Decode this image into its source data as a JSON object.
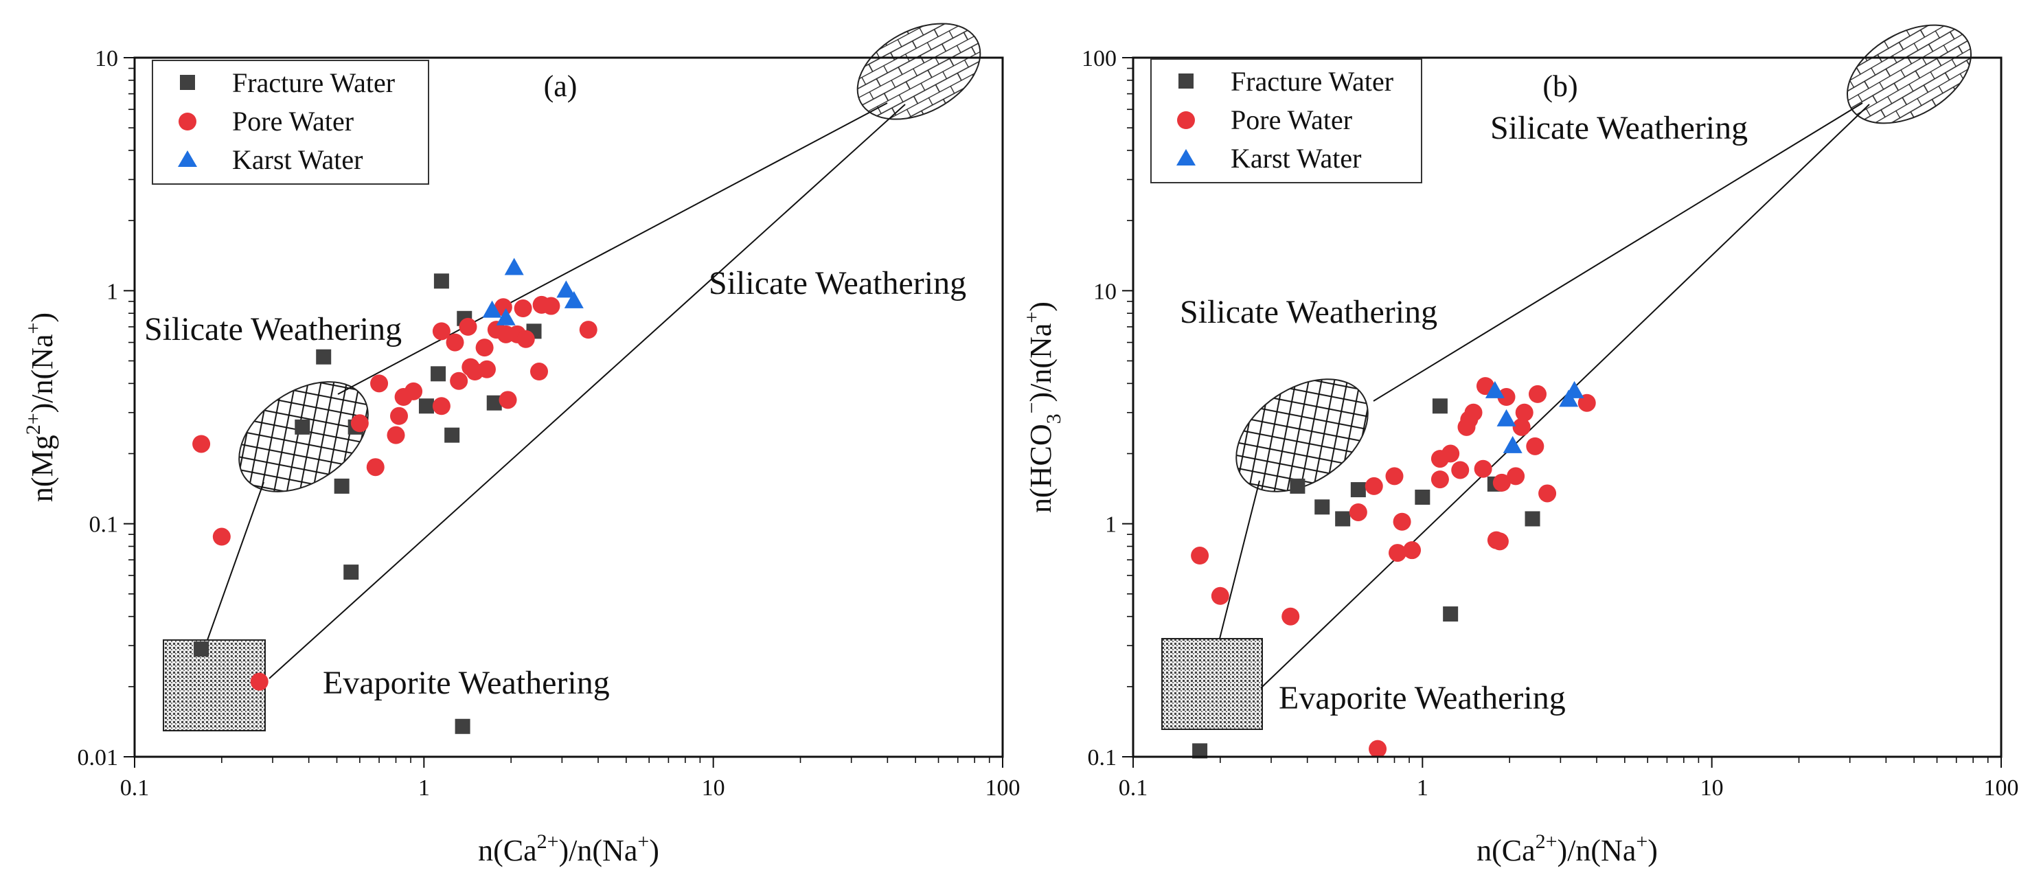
{
  "colors": {
    "fracture": "#404040",
    "pore": "#e8343a",
    "karst": "#1e6fe0"
  },
  "chart_data": [
    {
      "type": "scatter",
      "panel": "(a)",
      "x_scale": "log",
      "y_scale": "log",
      "xlim": [
        0.1,
        100
      ],
      "ylim": [
        0.01,
        10
      ],
      "x_ticks": [
        "0.1",
        "1",
        "10",
        "100"
      ],
      "y_ticks": [
        "0.01",
        "0.1",
        "1",
        "10"
      ],
      "xlabel": {
        "base": "n(Ca",
        "sup": "2+",
        "mid": ")/n(Na",
        "sup2": "+",
        "end": ")"
      },
      "ylabel": {
        "base": "n(Mg",
        "sup": "2+",
        "mid": ")/n(Na",
        "sup2": "+",
        "end": ")"
      },
      "legend": [
        "Fracture Water",
        "Pore Water",
        "Karst Water"
      ],
      "annotations": {
        "silicate_left": "Silicate Weathering",
        "silicate_right": "Silicate Weathering",
        "evaporite": "Evaporite Weathering"
      },
      "series": [
        {
          "name": "Fracture Water",
          "marker": "square",
          "points": [
            [
              0.17,
              0.029
            ],
            [
              0.38,
              0.26
            ],
            [
              0.45,
              0.52
            ],
            [
              0.52,
              0.145
            ],
            [
              0.56,
              0.062
            ],
            [
              0.58,
              0.26
            ],
            [
              1.02,
              0.32
            ],
            [
              1.12,
              0.44
            ],
            [
              1.15,
              1.1
            ],
            [
              1.25,
              0.24
            ],
            [
              1.38,
              0.76
            ],
            [
              1.36,
              0.0135
            ],
            [
              1.75,
              0.33
            ],
            [
              2.4,
              0.67
            ]
          ]
        },
        {
          "name": "Pore Water",
          "marker": "circle",
          "points": [
            [
              0.17,
              0.22
            ],
            [
              0.2,
              0.088
            ],
            [
              0.27,
              0.021
            ],
            [
              0.6,
              0.27
            ],
            [
              0.68,
              0.175
            ],
            [
              0.7,
              0.4
            ],
            [
              0.8,
              0.24
            ],
            [
              0.82,
              0.29
            ],
            [
              0.85,
              0.35
            ],
            [
              0.92,
              0.37
            ],
            [
              1.15,
              0.32
            ],
            [
              1.15,
              0.67
            ],
            [
              1.28,
              0.6
            ],
            [
              1.32,
              0.41
            ],
            [
              1.42,
              0.7
            ],
            [
              1.45,
              0.47
            ],
            [
              1.5,
              0.45
            ],
            [
              1.62,
              0.57
            ],
            [
              1.65,
              0.46
            ],
            [
              1.78,
              0.68
            ],
            [
              1.88,
              0.85
            ],
            [
              1.92,
              0.65
            ],
            [
              1.95,
              0.34
            ],
            [
              2.1,
              0.65
            ],
            [
              2.2,
              0.84
            ],
            [
              2.25,
              0.62
            ],
            [
              2.5,
              0.45
            ],
            [
              2.55,
              0.87
            ],
            [
              2.75,
              0.86
            ],
            [
              3.7,
              0.68
            ]
          ]
        },
        {
          "name": "Karst Water",
          "marker": "triangle",
          "points": [
            [
              1.72,
              0.82
            ],
            [
              1.92,
              0.76
            ],
            [
              2.05,
              1.25
            ],
            [
              3.1,
              1.0
            ],
            [
              3.3,
              0.9
            ]
          ]
        }
      ]
    },
    {
      "type": "scatter",
      "panel": "(b)",
      "x_scale": "log",
      "y_scale": "log",
      "xlim": [
        0.1,
        100
      ],
      "ylim": [
        0.1,
        100
      ],
      "x_ticks": [
        "0.1",
        "1",
        "10",
        "100"
      ],
      "y_ticks": [
        "0.1",
        "1",
        "10",
        "100"
      ],
      "xlabel": {
        "base": "n(Ca",
        "sup": "2+",
        "mid": ")/n(Na",
        "sup2": "+",
        "end": ")"
      },
      "ylabel": {
        "base": "n(HCO",
        "sub": "3",
        "sup": "−",
        "mid": ")/n(Na",
        "sup2": "+",
        "end": ")"
      },
      "legend": [
        "Fracture Water",
        "Pore Water",
        "Karst Water"
      ],
      "annotations": {
        "silicate_top": "Silicate Weathering",
        "silicate_mid": "Silicate Weathering",
        "evaporite": "Evaporite Weathering"
      },
      "series": [
        {
          "name": "Fracture Water",
          "marker": "square",
          "points": [
            [
              0.17,
              0.106
            ],
            [
              0.37,
              1.45
            ],
            [
              0.45,
              1.18
            ],
            [
              0.53,
              1.05
            ],
            [
              0.6,
              1.4
            ],
            [
              1.0,
              1.3
            ],
            [
              1.15,
              3.2
            ],
            [
              1.25,
              0.41
            ],
            [
              1.78,
              1.48
            ],
            [
              2.4,
              1.05
            ]
          ]
        },
        {
          "name": "Pore Water",
          "marker": "circle",
          "points": [
            [
              0.17,
              0.73
            ],
            [
              0.2,
              0.49
            ],
            [
              0.35,
              0.4
            ],
            [
              0.6,
              1.12
            ],
            [
              0.68,
              1.45
            ],
            [
              0.7,
              0.108
            ],
            [
              0.8,
              1.6
            ],
            [
              0.82,
              0.75
            ],
            [
              0.85,
              1.02
            ],
            [
              0.92,
              0.77
            ],
            [
              1.15,
              1.55
            ],
            [
              1.15,
              1.9
            ],
            [
              1.25,
              2.0
            ],
            [
              1.35,
              1.7
            ],
            [
              1.42,
              2.6
            ],
            [
              1.45,
              2.8
            ],
            [
              1.5,
              3.0
            ],
            [
              1.62,
              1.72
            ],
            [
              1.65,
              3.9
            ],
            [
              1.8,
              0.85
            ],
            [
              1.85,
              0.84
            ],
            [
              1.88,
              1.5
            ],
            [
              1.95,
              3.5
            ],
            [
              2.1,
              1.6
            ],
            [
              2.2,
              2.6
            ],
            [
              2.25,
              3.0
            ],
            [
              2.45,
              2.15
            ],
            [
              2.5,
              3.6
            ],
            [
              2.7,
              1.35
            ],
            [
              3.7,
              3.3
            ]
          ]
        },
        {
          "name": "Karst Water",
          "marker": "triangle",
          "points": [
            [
              1.78,
              3.7
            ],
            [
              1.95,
              2.8
            ],
            [
              2.05,
              2.15
            ],
            [
              3.2,
              3.4
            ],
            [
              3.35,
              3.7
            ]
          ]
        }
      ]
    }
  ]
}
